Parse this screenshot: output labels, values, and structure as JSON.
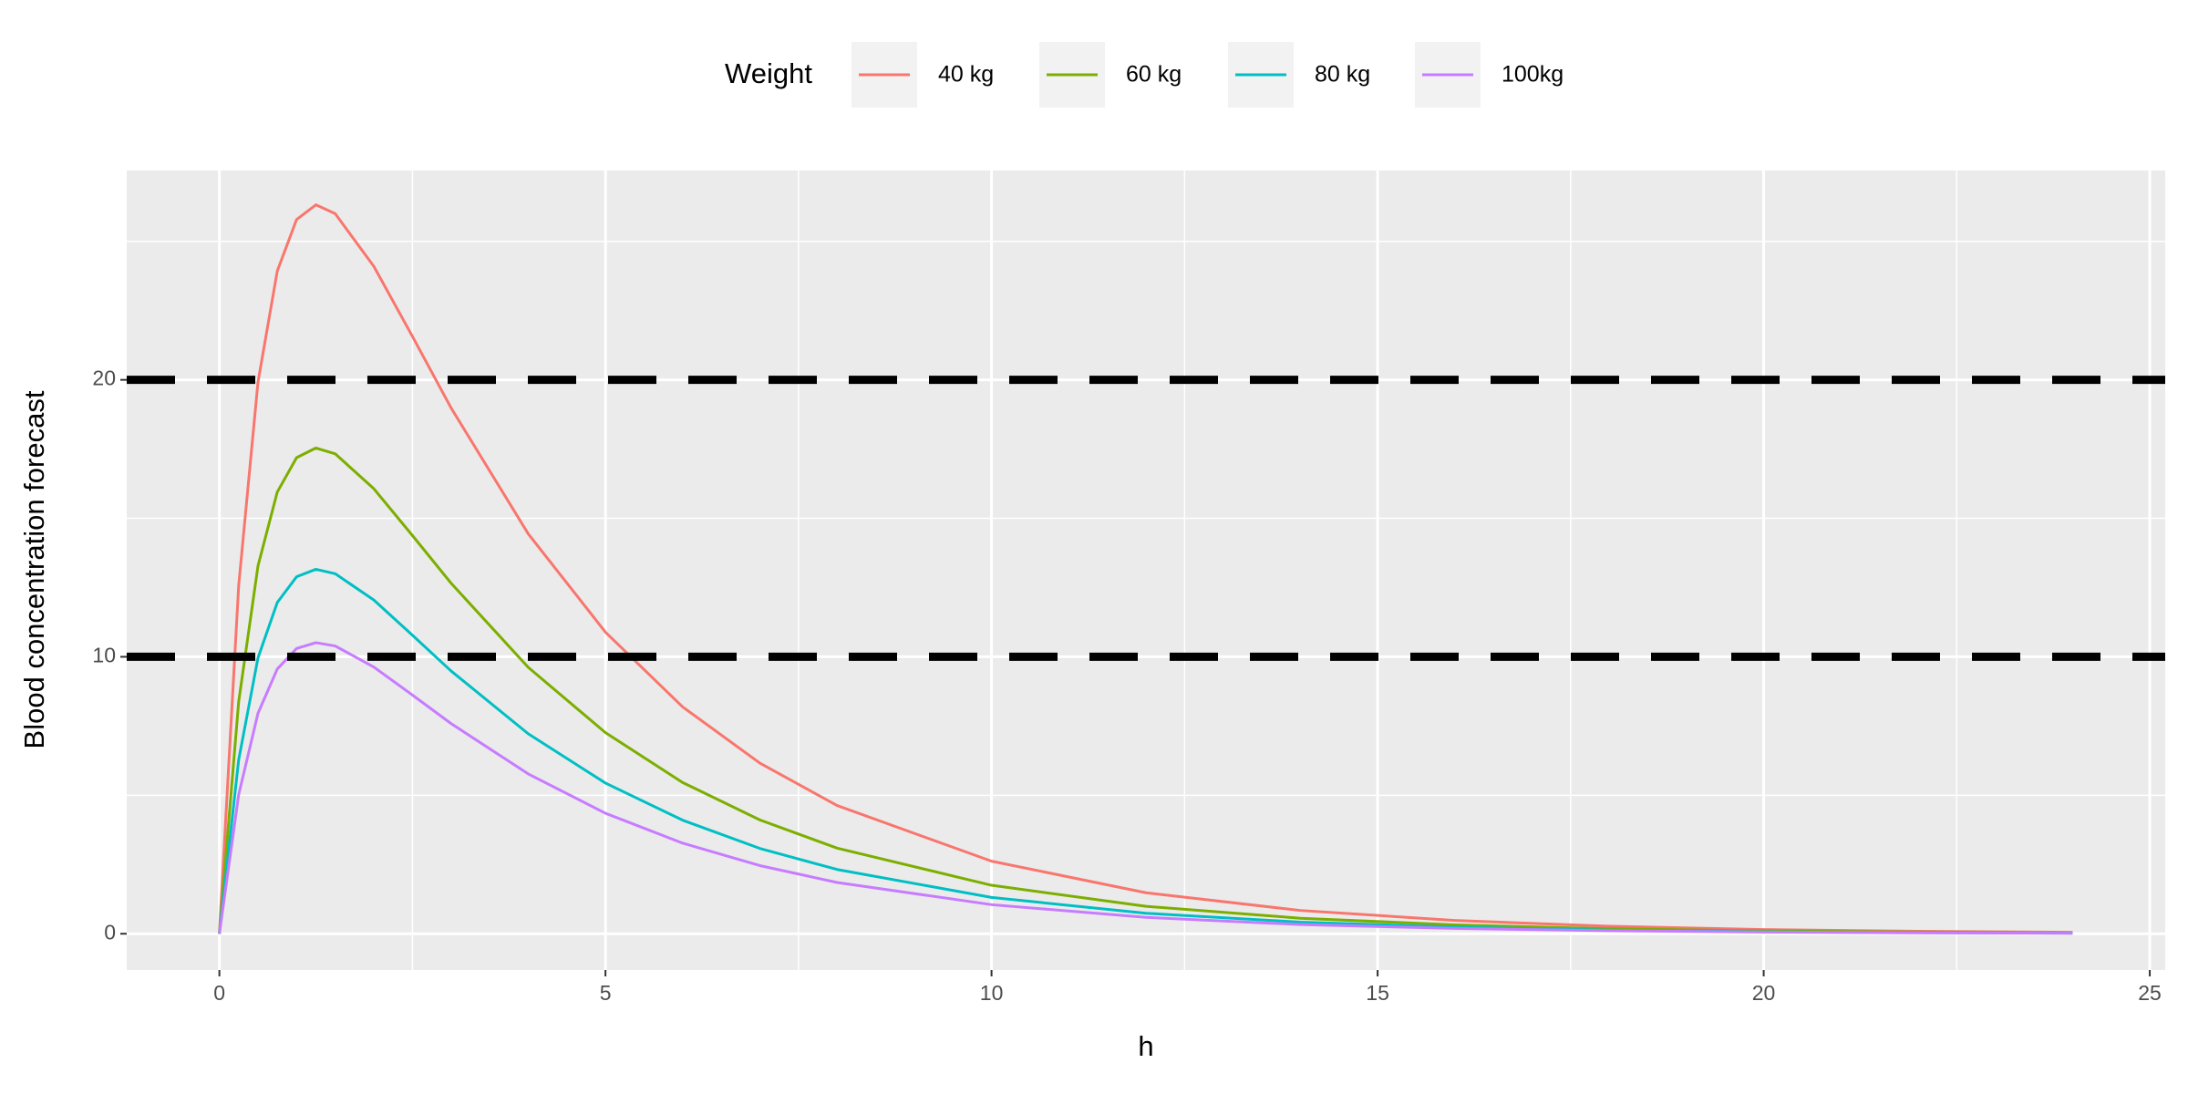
{
  "chart_data": {
    "type": "line",
    "x_label": "h",
    "y_label": "Blood concentration forecast",
    "legend_title": "Weight",
    "legend_position": "top",
    "x": [
      0,
      0.25,
      0.5,
      0.75,
      1,
      1.25,
      1.5,
      2,
      2.5,
      3,
      4,
      5,
      6,
      7,
      8,
      10,
      12,
      14,
      16,
      18,
      20,
      22,
      24
    ],
    "series": [
      {
        "name": "40 kg",
        "color": "#F8766D",
        "values": [
          0,
          12.57,
          19.92,
          23.93,
          25.79,
          26.32,
          26.0,
          24.1,
          21.57,
          18.99,
          14.44,
          10.89,
          8.19,
          6.16,
          4.63,
          2.62,
          1.48,
          0.84,
          0.48,
          0.27,
          0.15,
          0.09,
          0.05
        ]
      },
      {
        "name": "60 kg",
        "color": "#7CAE00",
        "values": [
          0,
          8.38,
          13.28,
          15.95,
          17.19,
          17.54,
          17.33,
          16.07,
          14.38,
          12.66,
          9.62,
          7.26,
          5.46,
          4.11,
          3.09,
          1.75,
          0.99,
          0.56,
          0.32,
          0.18,
          0.1,
          0.06,
          0.03
        ]
      },
      {
        "name": "80 kg",
        "color": "#00BFC4",
        "values": [
          0,
          6.28,
          9.96,
          11.96,
          12.89,
          13.16,
          13.0,
          12.05,
          10.78,
          9.49,
          7.22,
          5.44,
          4.1,
          3.08,
          2.32,
          1.31,
          0.74,
          0.42,
          0.24,
          0.13,
          0.07,
          0.04,
          0.02
        ]
      },
      {
        "name": "100kg",
        "color": "#C77CFF",
        "values": [
          0,
          5.02,
          7.96,
          9.56,
          10.3,
          10.51,
          10.39,
          9.63,
          8.62,
          7.59,
          5.77,
          4.35,
          3.27,
          2.46,
          1.85,
          1.05,
          0.59,
          0.33,
          0.19,
          0.11,
          0.06,
          0.03,
          0.02
        ]
      }
    ],
    "hlines": [
      10,
      20
    ],
    "hline_color": "#000000",
    "xlim": [
      -1.2,
      25.2
    ],
    "xticks": [
      0,
      5,
      10,
      15,
      20,
      25
    ],
    "ylim": [
      -1.31,
      27.56
    ],
    "yticks": [
      0,
      10,
      20
    ],
    "grid": true,
    "minor_grid": true
  }
}
